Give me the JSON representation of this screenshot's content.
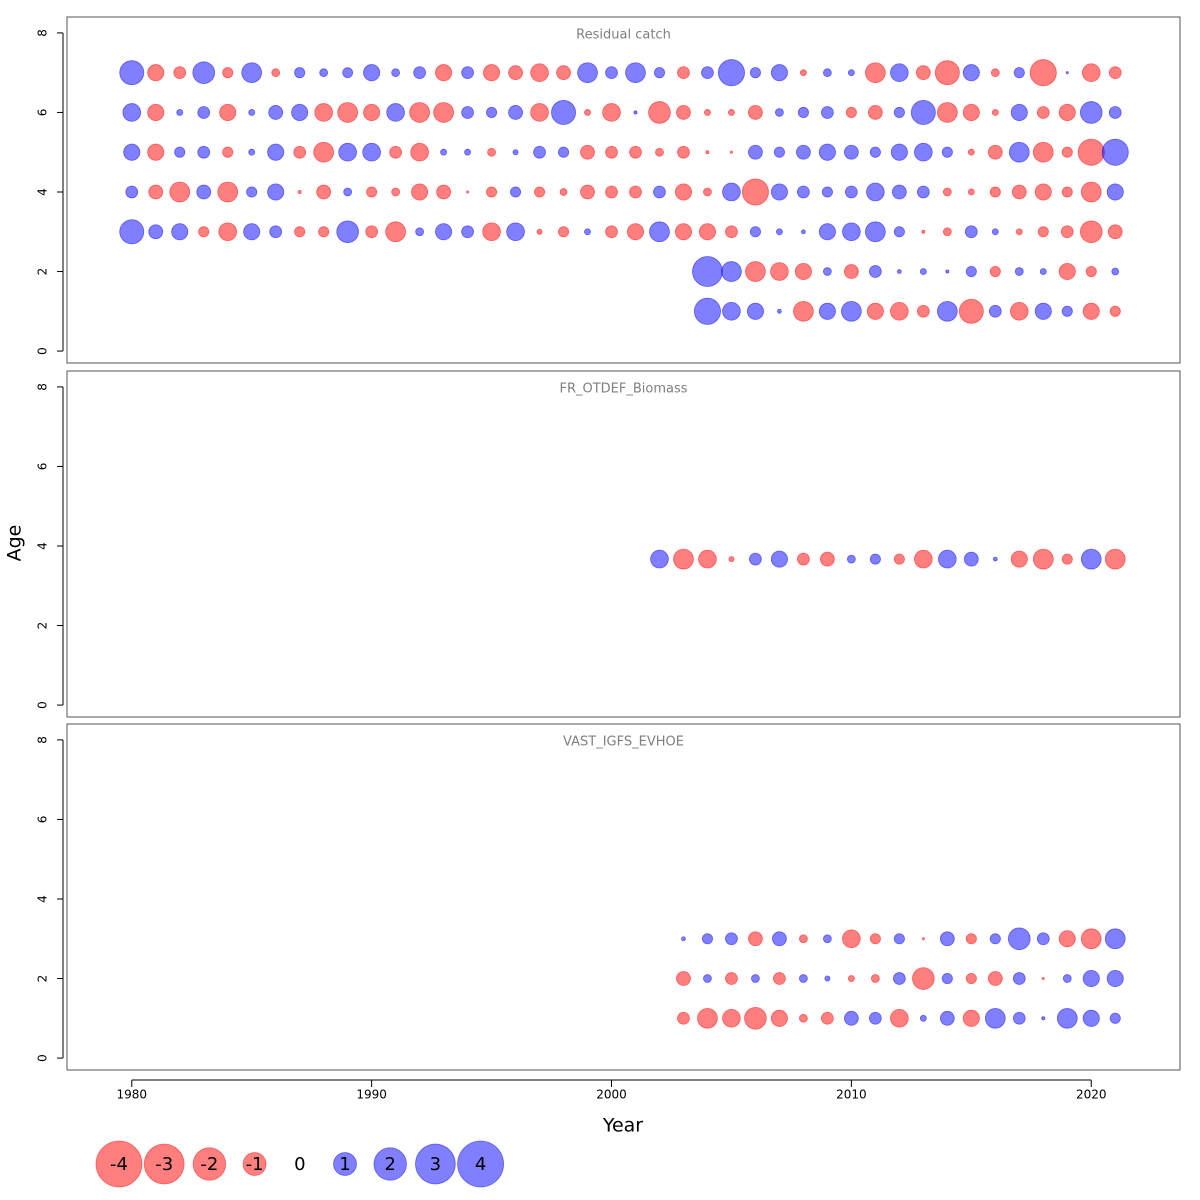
{
  "chart_data": {
    "type": "bubble",
    "xlabel": "Year",
    "ylabel": "Age",
    "xlim": [
      1977.3,
      2023.7
    ],
    "xticks": [
      1980,
      1990,
      2000,
      2010,
      2020
    ],
    "positive_color": "#0000ff",
    "negative_color": "#ff0000",
    "opacity": 0.5,
    "size_legend": [
      -4,
      -3,
      -2,
      -1,
      0,
      1,
      2,
      3,
      4
    ],
    "panels": [
      {
        "title": "Residual catch",
        "ylim": [
          -0.3,
          8.4
        ],
        "yticks": [
          0,
          2,
          4,
          6,
          8
        ],
        "rows": [
          {
            "age": 7,
            "x": [
              1980,
              1981,
              1982,
              1983,
              1984,
              1985,
              1986,
              1987,
              1988,
              1989,
              1990,
              1991,
              1992,
              1993,
              1994,
              1995,
              1996,
              1997,
              1998,
              1999,
              2000,
              2001,
              2002,
              2003,
              2004,
              2005,
              2006,
              2007,
              2008,
              2009,
              2010,
              2011,
              2012,
              2013,
              2014,
              2015,
              2016,
              2017,
              2018,
              2019,
              2020,
              2021
            ],
            "values": [
              1.1,
              -0.5,
              -0.27,
              0.9,
              -0.2,
              0.75,
              -0.12,
              0.2,
              0.12,
              0.19,
              0.5,
              0.12,
              0.27,
              -0.5,
              0.27,
              -0.5,
              -0.37,
              -0.6,
              -0.37,
              0.75,
              0.27,
              0.75,
              0.2,
              -0.27,
              0.27,
              1.3,
              0.2,
              0.5,
              -0.07,
              0.12,
              0.07,
              -0.75,
              0.6,
              -0.37,
              -1.1,
              0.5,
              -0.12,
              0.2,
              -1.3,
              0.01,
              -0.6,
              -0.27
            ]
          },
          {
            "age": 6,
            "x": [
              1980,
              1981,
              1982,
              1983,
              1984,
              1985,
              1986,
              1987,
              1988,
              1989,
              1990,
              1991,
              1992,
              1993,
              1994,
              1995,
              1996,
              1997,
              1998,
              1999,
              2000,
              2001,
              2002,
              2003,
              2004,
              2005,
              2006,
              2007,
              2008,
              2009,
              2010,
              2011,
              2012,
              2013,
              2014,
              2015,
              2016,
              2017,
              2018,
              2019,
              2020,
              2021
            ],
            "values": [
              0.6,
              -0.5,
              0.07,
              0.27,
              -0.5,
              0.07,
              0.37,
              0.5,
              -0.6,
              -0.75,
              -0.5,
              0.6,
              -0.75,
              -0.75,
              0.27,
              0.2,
              0.37,
              -0.6,
              1.1,
              -0.07,
              -0.6,
              0.02,
              -0.9,
              -0.37,
              -0.07,
              -0.07,
              -0.37,
              0.12,
              0.2,
              0.27,
              -0.2,
              -0.37,
              0.2,
              1.1,
              -0.75,
              -0.5,
              -0.07,
              0.5,
              -0.27,
              -0.5,
              0.9,
              0.27
            ]
          },
          {
            "age": 5,
            "x": [
              1980,
              1981,
              1982,
              1983,
              1984,
              1985,
              1986,
              1987,
              1988,
              1989,
              1990,
              1991,
              1992,
              1993,
              1994,
              1995,
              1996,
              1997,
              1998,
              1999,
              2000,
              2001,
              2002,
              2003,
              2004,
              2005,
              2006,
              2007,
              2008,
              2009,
              2010,
              2011,
              2012,
              2013,
              2014,
              2015,
              2016,
              2017,
              2018,
              2019,
              2020,
              2021
            ],
            "values": [
              0.5,
              -0.5,
              0.2,
              0.27,
              -0.2,
              0.07,
              0.5,
              -0.27,
              -0.75,
              0.6,
              0.6,
              -0.27,
              -0.6,
              0.07,
              0.07,
              -0.12,
              0.05,
              0.27,
              0.2,
              -0.37,
              -0.27,
              -0.27,
              -0.12,
              -0.27,
              -0.02,
              -0.01,
              0.37,
              0.2,
              0.37,
              0.5,
              0.37,
              0.2,
              0.5,
              0.6,
              0.2,
              -0.07,
              -0.37,
              0.75,
              -0.75,
              -0.2,
              -1.3,
              1.3
            ]
          },
          {
            "age": 4,
            "x": [
              1980,
              1981,
              1982,
              1983,
              1984,
              1985,
              1986,
              1987,
              1988,
              1989,
              1990,
              1991,
              1992,
              1993,
              1994,
              1995,
              1996,
              1997,
              1998,
              1999,
              2000,
              2001,
              2002,
              2003,
              2004,
              2005,
              2006,
              2007,
              2008,
              2009,
              2010,
              2011,
              2012,
              2013,
              2014,
              2015,
              2016,
              2017,
              2018,
              2019,
              2020,
              2021
            ],
            "values": [
              0.27,
              -0.37,
              -0.75,
              0.37,
              -0.75,
              0.2,
              0.5,
              -0.02,
              -0.37,
              0.12,
              -0.2,
              -0.12,
              -0.5,
              -0.37,
              -0.01,
              -0.2,
              0.2,
              -0.2,
              -0.09,
              -0.37,
              -0.27,
              -0.27,
              0.27,
              -0.5,
              -0.12,
              0.6,
              -1.3,
              0.5,
              0.27,
              0.2,
              0.27,
              0.6,
              0.37,
              0.27,
              -0.12,
              -0.07,
              -0.2,
              -0.37,
              -0.5,
              -0.2,
              -0.75,
              0.5
            ]
          },
          {
            "age": 3,
            "x": [
              1980,
              1981,
              1982,
              1983,
              1984,
              1985,
              1986,
              1987,
              1988,
              1989,
              1990,
              1991,
              1992,
              1993,
              1994,
              1995,
              1996,
              1997,
              1998,
              1999,
              2000,
              2001,
              2002,
              2003,
              2004,
              2005,
              2006,
              2007,
              2008,
              2009,
              2010,
              2011,
              2012,
              2013,
              2014,
              2015,
              2016,
              2017,
              2018,
              2019,
              2020,
              2021
            ],
            "values": [
              1.1,
              0.37,
              0.5,
              -0.2,
              -0.6,
              0.5,
              0.27,
              -0.2,
              -0.2,
              0.9,
              -0.27,
              -0.75,
              0.12,
              0.5,
              0.27,
              -0.6,
              0.6,
              -0.05,
              -0.2,
              0.07,
              -0.27,
              -0.5,
              0.75,
              -0.5,
              -0.5,
              -0.27,
              0.2,
              0.07,
              0.03,
              0.5,
              0.6,
              0.75,
              0.2,
              -0.02,
              -0.12,
              0.27,
              0.07,
              -0.07,
              -0.2,
              -0.27,
              -0.9,
              -0.37
            ]
          },
          {
            "age": 2,
            "x": [
              2004,
              2005,
              2006,
              2007,
              2008,
              2009,
              2010,
              2011,
              2012,
              2013,
              2014,
              2015,
              2016,
              2017,
              2018,
              2019,
              2020,
              2021
            ],
            "values": [
              1.7,
              0.75,
              -0.75,
              -0.6,
              -0.5,
              0.12,
              -0.37,
              0.27,
              0.03,
              0.07,
              0.02,
              0.2,
              -0.2,
              0.12,
              0.07,
              -0.5,
              -0.2,
              0.09
            ]
          },
          {
            "age": 1,
            "x": [
              2004,
              2005,
              2006,
              2007,
              2008,
              2009,
              2010,
              2011,
              2012,
              2013,
              2014,
              2015,
              2016,
              2017,
              2018,
              2019,
              2020,
              2021
            ],
            "values": [
              1.3,
              0.6,
              0.5,
              0.03,
              -0.75,
              0.5,
              0.75,
              -0.5,
              -0.6,
              -0.27,
              0.75,
              -1.1,
              0.27,
              -0.6,
              0.5,
              0.2,
              -0.5,
              -0.2
            ]
          }
        ]
      },
      {
        "title": "FR_OTDEF_Biomass",
        "ylim": [
          -0.3,
          8.4
        ],
        "yticks": [
          0,
          2,
          4,
          6,
          8
        ],
        "rows": [
          {
            "age": 3.67,
            "x": [
              2002,
              2003,
              2004,
              2005,
              2006,
              2007,
              2008,
              2009,
              2010,
              2011,
              2012,
              2013,
              2014,
              2015,
              2016,
              2017,
              2018,
              2019,
              2020,
              2021
            ],
            "values": [
              0.6,
              -0.75,
              -0.6,
              -0.05,
              0.27,
              0.5,
              -0.27,
              -0.37,
              0.12,
              0.2,
              -0.2,
              -0.6,
              0.6,
              0.37,
              0.03,
              -0.5,
              -0.75,
              -0.2,
              0.75,
              -0.75
            ]
          }
        ]
      },
      {
        "title": "VAST_IGFS_EVHOE",
        "ylim": [
          -0.3,
          8.4
        ],
        "yticks": [
          0,
          2,
          4,
          6,
          8
        ],
        "rows": [
          {
            "age": 3,
            "x": [
              2003,
              2004,
              2005,
              2006,
              2007,
              2008,
              2009,
              2010,
              2011,
              2012,
              2013,
              2014,
              2015,
              2016,
              2017,
              2018,
              2019,
              2020,
              2021
            ],
            "values": [
              0.03,
              0.2,
              0.27,
              -0.37,
              0.37,
              -0.12,
              0.12,
              -0.6,
              -0.2,
              0.2,
              -0.01,
              0.37,
              -0.2,
              0.2,
              0.9,
              0.27,
              -0.5,
              -0.75,
              0.75
            ]
          },
          {
            "age": 2,
            "x": [
              2003,
              2004,
              2005,
              2006,
              2007,
              2008,
              2009,
              2010,
              2011,
              2012,
              2013,
              2014,
              2015,
              2016,
              2017,
              2018,
              2019,
              2020,
              2021
            ],
            "values": [
              -0.37,
              0.12,
              -0.27,
              0.12,
              -0.27,
              0.12,
              0.05,
              -0.07,
              -0.12,
              0.27,
              -0.9,
              0.2,
              -0.2,
              -0.37,
              0.27,
              -0.01,
              0.12,
              0.5,
              0.5
            ]
          },
          {
            "age": 1,
            "x": [
              2003,
              2004,
              2005,
              2006,
              2007,
              2008,
              2009,
              2010,
              2011,
              2012,
              2013,
              2014,
              2015,
              2016,
              2017,
              2018,
              2019,
              2020,
              2021
            ],
            "values": [
              -0.27,
              -0.75,
              -0.6,
              -0.9,
              -0.5,
              -0.12,
              -0.27,
              0.37,
              0.27,
              -0.6,
              0.07,
              0.37,
              -0.5,
              0.75,
              0.27,
              0.02,
              0.75,
              0.5,
              0.2
            ]
          }
        ]
      }
    ]
  }
}
